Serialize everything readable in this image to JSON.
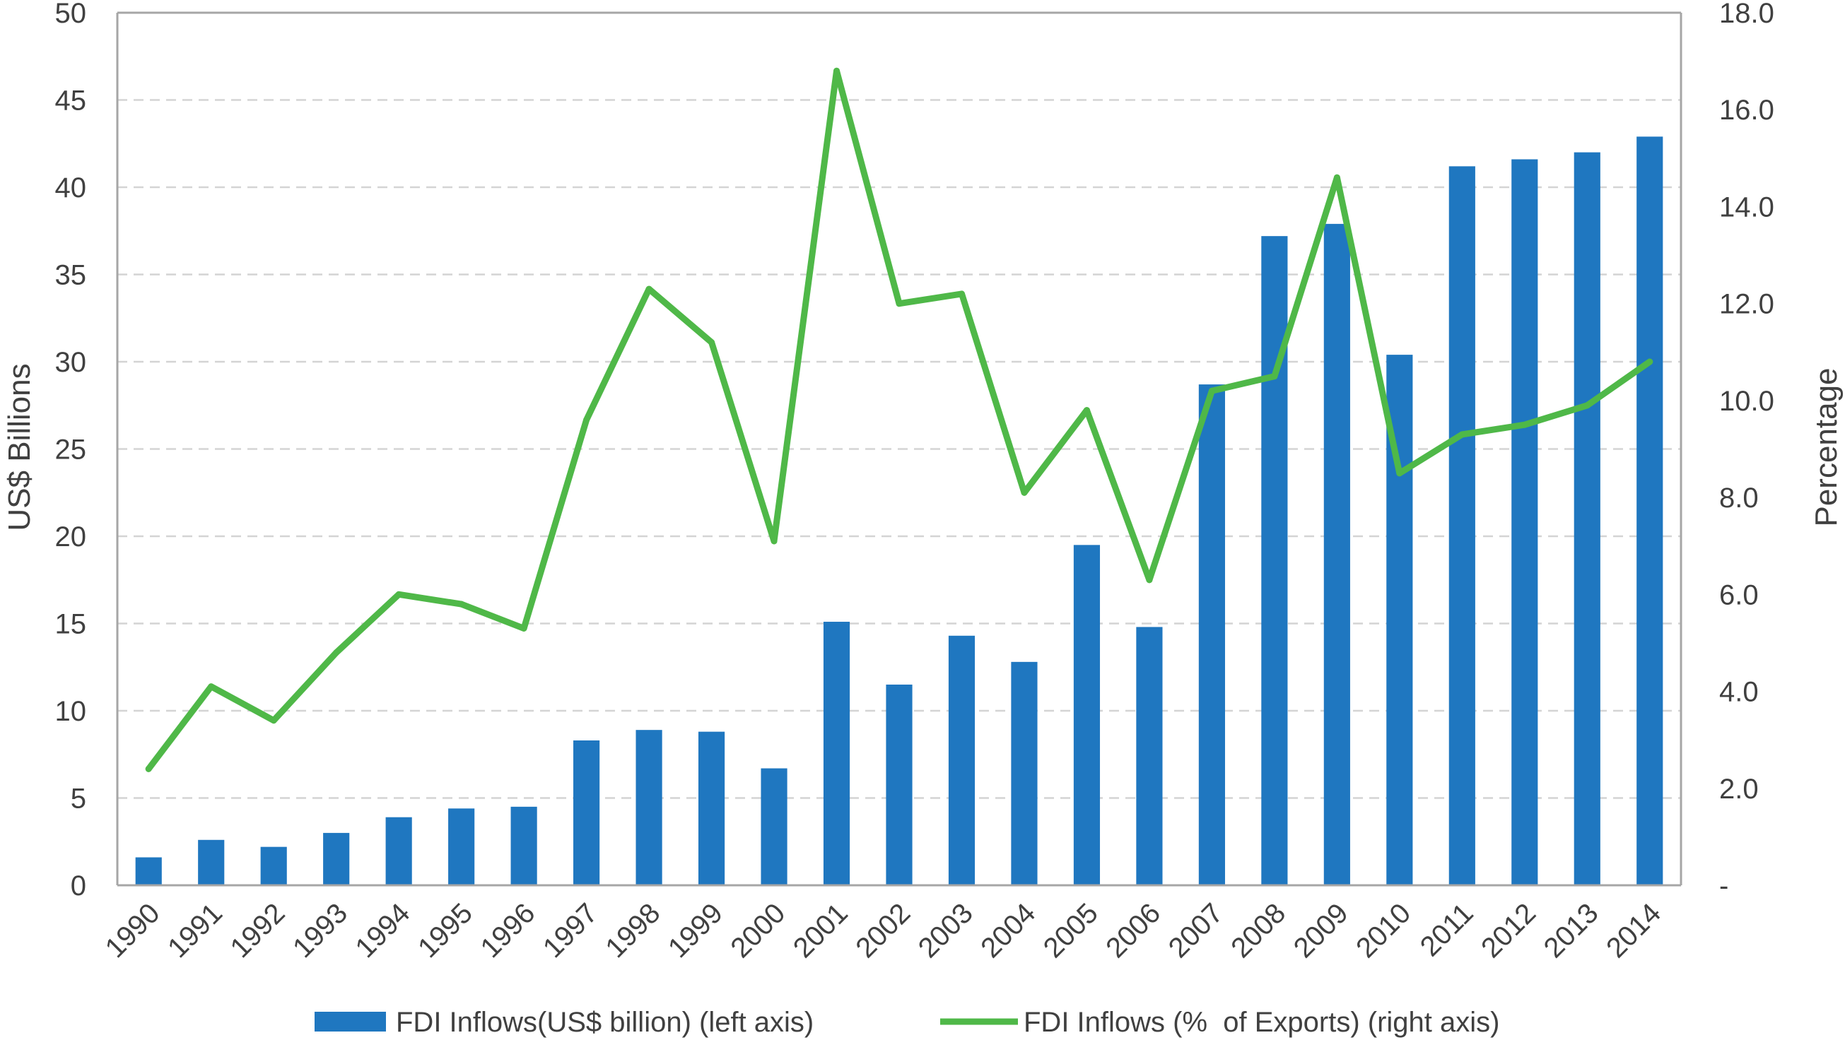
{
  "chart_data": {
    "type": "bar",
    "categories": [
      "1990",
      "1991",
      "1992",
      "1993",
      "1994",
      "1995",
      "1996",
      "1997",
      "1998",
      "1999",
      "2000",
      "2001",
      "2002",
      "2003",
      "2004",
      "2005",
      "2006",
      "2007",
      "2008",
      "2009",
      "2010",
      "2011",
      "2012",
      "2013",
      "2014"
    ],
    "series": [
      {
        "name": "FDI Inflows(US$ billion) (left axis)",
        "type": "bar",
        "axis": "left",
        "color": "#1f77c0",
        "values": [
          1.6,
          2.6,
          2.2,
          3.0,
          3.9,
          4.4,
          4.5,
          8.3,
          8.9,
          8.8,
          6.7,
          15.1,
          11.5,
          14.3,
          12.8,
          19.5,
          14.8,
          28.7,
          37.2,
          37.9,
          30.4,
          41.2,
          41.6,
          42.0,
          42.9
        ]
      },
      {
        "name": "FDI Inflows (%  of Exports) (right axis)",
        "type": "line",
        "axis": "right",
        "color": "#4fb848",
        "values": [
          2.4,
          4.1,
          3.4,
          4.8,
          6.0,
          5.8,
          5.3,
          9.6,
          12.3,
          11.2,
          7.1,
          16.8,
          12.0,
          12.2,
          8.1,
          9.8,
          6.3,
          10.2,
          10.5,
          14.6,
          8.5,
          9.3,
          9.5,
          9.9,
          10.8
        ]
      }
    ],
    "ylabel": "US$ Billions",
    "ylabel_right": "Percentage",
    "ylim": [
      0,
      50
    ],
    "ylim_right": [
      0,
      18
    ],
    "yticks_left": [
      "0",
      "5",
      "10",
      "15",
      "20",
      "25",
      "30",
      "35",
      "40",
      "45",
      "50"
    ],
    "yticks_right": [
      "-",
      "2.0",
      "4.0",
      "6.0",
      "8.0",
      "10.0",
      "12.0",
      "14.0",
      "16.0",
      "18.0"
    ],
    "grid": "horizontal dashed",
    "legend_position": "bottom"
  }
}
